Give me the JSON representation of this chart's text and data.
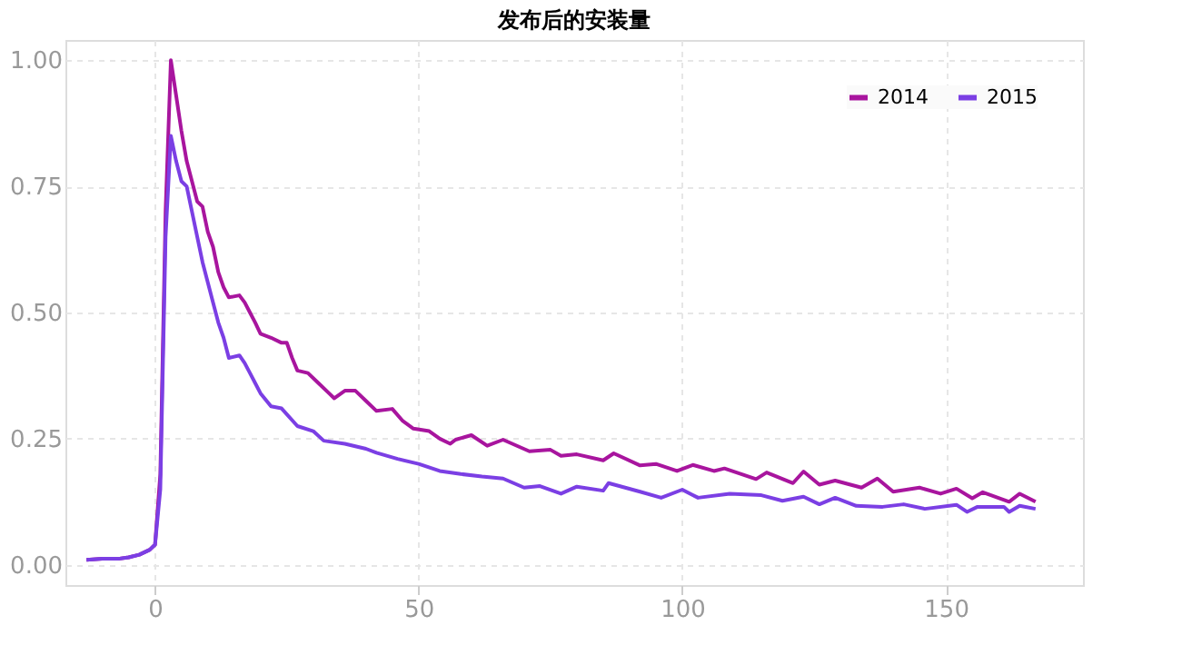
{
  "chart_data": {
    "type": "line",
    "title": "发布后的安装量",
    "xlim": [
      -17,
      176
    ],
    "ylim": [
      -0.04,
      1.04
    ],
    "xticks": [
      0,
      50,
      100,
      150
    ],
    "yticks": [
      {
        "value": 0,
        "label": "0.00"
      },
      {
        "value": 0.25,
        "label": "0.25"
      },
      {
        "value": 0.5,
        "label": "0.50"
      },
      {
        "value": 0.75,
        "label": "0.75"
      },
      {
        "value": 1,
        "label": "1.00"
      }
    ],
    "grid": true,
    "legend": "top right",
    "line_style": "solid",
    "marker": "none",
    "series": [
      {
        "name": "2014",
        "color": "#a8159e",
        "x": [
          -13,
          -10,
          -7,
          -5,
          -3,
          -1,
          0,
          1,
          2,
          3,
          4,
          5,
          6,
          7,
          8,
          9,
          10,
          11,
          12,
          13,
          14,
          16,
          17,
          18,
          19,
          20,
          22,
          24,
          25,
          26,
          27,
          29,
          31,
          33,
          34,
          36,
          38,
          40,
          42,
          45,
          47,
          49,
          52,
          54,
          56,
          57,
          60,
          63,
          66,
          71,
          75,
          77,
          80,
          85,
          87,
          92,
          95,
          99,
          102,
          106,
          108,
          114,
          116,
          121,
          123,
          126,
          129,
          134,
          137,
          140,
          145,
          149,
          152,
          155,
          157,
          162,
          164,
          167
        ],
        "values": [
          0.01,
          0.012,
          0.012,
          0.015,
          0.02,
          0.03,
          0.04,
          0.18,
          0.7,
          1.0,
          0.93,
          0.86,
          0.8,
          0.76,
          0.72,
          0.71,
          0.66,
          0.63,
          0.58,
          0.55,
          0.53,
          0.534,
          0.52,
          0.5,
          0.48,
          0.458,
          0.45,
          0.44,
          0.44,
          0.41,
          0.385,
          0.38,
          0.36,
          0.34,
          0.33,
          0.345,
          0.345,
          0.325,
          0.305,
          0.309,
          0.285,
          0.27,
          0.265,
          0.25,
          0.24,
          0.248,
          0.257,
          0.236,
          0.248,
          0.225,
          0.228,
          0.216,
          0.219,
          0.207,
          0.221,
          0.197,
          0.2,
          0.186,
          0.198,
          0.186,
          0.191,
          0.17,
          0.183,
          0.162,
          0.185,
          0.159,
          0.167,
          0.153,
          0.171,
          0.145,
          0.153,
          0.141,
          0.151,
          0.132,
          0.144,
          0.125,
          0.141,
          0.125
        ]
      },
      {
        "name": "2015",
        "color": "#7b3fe4",
        "x": [
          -13,
          -10,
          -7,
          -5,
          -3,
          -1,
          0,
          1,
          2,
          3,
          4,
          5,
          6,
          7,
          8,
          9,
          10,
          11,
          12,
          13,
          14,
          16,
          17,
          18,
          19,
          20,
          22,
          24,
          27,
          30,
          32,
          36,
          38,
          40,
          42,
          46,
          50,
          54,
          58,
          62,
          66,
          70,
          73,
          77,
          80,
          85,
          86,
          92,
          96,
          100,
          103,
          109,
          115,
          119,
          123,
          126,
          129,
          133,
          138,
          142,
          146,
          152,
          154,
          156,
          161,
          162,
          164,
          167
        ],
        "values": [
          0.01,
          0.012,
          0.012,
          0.015,
          0.02,
          0.03,
          0.04,
          0.15,
          0.65,
          0.85,
          0.8,
          0.76,
          0.75,
          0.7,
          0.65,
          0.6,
          0.56,
          0.52,
          0.48,
          0.45,
          0.41,
          0.415,
          0.4,
          0.38,
          0.36,
          0.34,
          0.314,
          0.31,
          0.275,
          0.265,
          0.246,
          0.24,
          0.235,
          0.23,
          0.222,
          0.21,
          0.2,
          0.186,
          0.18,
          0.175,
          0.171,
          0.153,
          0.156,
          0.141,
          0.155,
          0.147,
          0.162,
          0.145,
          0.133,
          0.149,
          0.133,
          0.141,
          0.138,
          0.127,
          0.135,
          0.12,
          0.133,
          0.117,
          0.115,
          0.12,
          0.111,
          0.119,
          0.105,
          0.115,
          0.115,
          0.105,
          0.117,
          0.111
        ]
      }
    ]
  }
}
